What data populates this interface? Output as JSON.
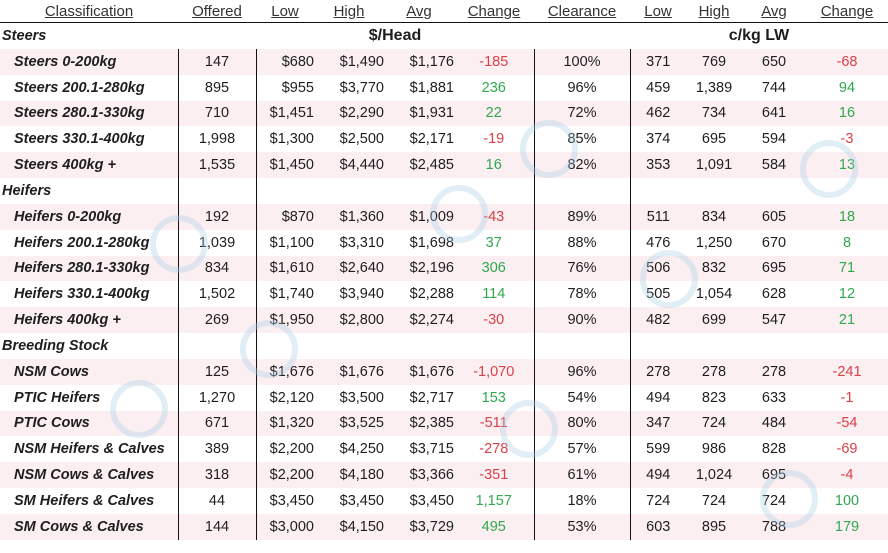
{
  "headers": {
    "classification": "Classification",
    "offered": "Offered",
    "low": "Low",
    "high": "High",
    "avg": "Avg",
    "change": "Change",
    "clearance": "Clearance",
    "low2": "Low",
    "high2": "High",
    "avg2": "Avg",
    "change2": "Change"
  },
  "groups": {
    "head": "$/Head",
    "kg": "c/kg LW"
  },
  "sections": [
    "Steers",
    "Heifers",
    "Breeding Stock"
  ],
  "rows": [
    {
      "cls": "Steers 0-200kg",
      "offered": "147",
      "low": "$680",
      "high": "$1,490",
      "avg": "$1,176",
      "change": "-185",
      "clearance": "100%",
      "low2": "371",
      "high2": "769",
      "avg2": "650",
      "change2": "-68"
    },
    {
      "cls": "Steers 200.1-280kg",
      "offered": "895",
      "low": "$955",
      "high": "$3,770",
      "avg": "$1,881",
      "change": "236",
      "clearance": "96%",
      "low2": "459",
      "high2": "1,389",
      "avg2": "744",
      "change2": "94"
    },
    {
      "cls": "Steers 280.1-330kg",
      "offered": "710",
      "low": "$1,451",
      "high": "$2,290",
      "avg": "$1,931",
      "change": "22",
      "clearance": "72%",
      "low2": "462",
      "high2": "734",
      "avg2": "641",
      "change2": "16"
    },
    {
      "cls": "Steers 330.1-400kg",
      "offered": "1,998",
      "low": "$1,300",
      "high": "$2,500",
      "avg": "$2,171",
      "change": "-19",
      "clearance": "85%",
      "low2": "374",
      "high2": "695",
      "avg2": "594",
      "change2": "-3"
    },
    {
      "cls": "Steers 400kg +",
      "offered": "1,535",
      "low": "$1,450",
      "high": "$4,440",
      "avg": "$2,485",
      "change": "16",
      "clearance": "82%",
      "low2": "353",
      "high2": "1,091",
      "avg2": "584",
      "change2": "13"
    },
    {
      "cls": "Heifers 0-200kg",
      "offered": "192",
      "low": "$870",
      "high": "$1,360",
      "avg": "$1,009",
      "change": "-43",
      "clearance": "89%",
      "low2": "511",
      "high2": "834",
      "avg2": "605",
      "change2": "18"
    },
    {
      "cls": "Heifers 200.1-280kg",
      "offered": "1,039",
      "low": "$1,100",
      "high": "$3,310",
      "avg": "$1,698",
      "change": "37",
      "clearance": "88%",
      "low2": "476",
      "high2": "1,250",
      "avg2": "670",
      "change2": "8"
    },
    {
      "cls": "Heifers 280.1-330kg",
      "offered": "834",
      "low": "$1,610",
      "high": "$2,640",
      "avg": "$2,196",
      "change": "306",
      "clearance": "76%",
      "low2": "506",
      "high2": "832",
      "avg2": "695",
      "change2": "71"
    },
    {
      "cls": "Heifers 330.1-400kg",
      "offered": "1,502",
      "low": "$1,740",
      "high": "$3,940",
      "avg": "$2,288",
      "change": "114",
      "clearance": "78%",
      "low2": "505",
      "high2": "1,054",
      "avg2": "628",
      "change2": "12"
    },
    {
      "cls": "Heifers 400kg +",
      "offered": "269",
      "low": "$1,950",
      "high": "$2,800",
      "avg": "$2,274",
      "change": "-30",
      "clearance": "90%",
      "low2": "482",
      "high2": "699",
      "avg2": "547",
      "change2": "21"
    },
    {
      "cls": "NSM Cows",
      "offered": "125",
      "low": "$1,676",
      "high": "$1,676",
      "avg": "$1,676",
      "change": "-1,070",
      "clearance": "96%",
      "low2": "278",
      "high2": "278",
      "avg2": "278",
      "change2": "-241"
    },
    {
      "cls": "PTIC Heifers",
      "offered": "1,270",
      "low": "$2,120",
      "high": "$3,500",
      "avg": "$2,717",
      "change": "153",
      "clearance": "54%",
      "low2": "494",
      "high2": "823",
      "avg2": "633",
      "change2": "-1"
    },
    {
      "cls": "PTIC Cows",
      "offered": "671",
      "low": "$1,320",
      "high": "$3,525",
      "avg": "$2,385",
      "change": "-511",
      "clearance": "80%",
      "low2": "347",
      "high2": "724",
      "avg2": "484",
      "change2": "-54"
    },
    {
      "cls": "NSM Heifers & Calves",
      "offered": "389",
      "low": "$2,200",
      "high": "$4,250",
      "avg": "$3,715",
      "change": "-278",
      "clearance": "57%",
      "low2": "599",
      "high2": "986",
      "avg2": "828",
      "change2": "-69"
    },
    {
      "cls": "NSM Cows & Calves",
      "offered": "318",
      "low": "$2,200",
      "high": "$4,180",
      "avg": "$3,366",
      "change": "-351",
      "clearance": "61%",
      "low2": "494",
      "high2": "1,024",
      "avg2": "695",
      "change2": "-4"
    },
    {
      "cls": "SM Heifers & Calves",
      "offered": "44",
      "low": "$3,450",
      "high": "$3,450",
      "avg": "$3,450",
      "change": "1,157",
      "clearance": "18%",
      "low2": "724",
      "high2": "724",
      "avg2": "724",
      "change2": "100"
    },
    {
      "cls": "SM Cows & Calves",
      "offered": "144",
      "low": "$3,000",
      "high": "$4,150",
      "avg": "$3,729",
      "change": "495",
      "clearance": "53%",
      "low2": "603",
      "high2": "895",
      "avg2": "788",
      "change2": "179"
    }
  ],
  "colors": {
    "positive": "#2fa84f",
    "negative": "#d9404a",
    "band": "#fbeff1"
  }
}
